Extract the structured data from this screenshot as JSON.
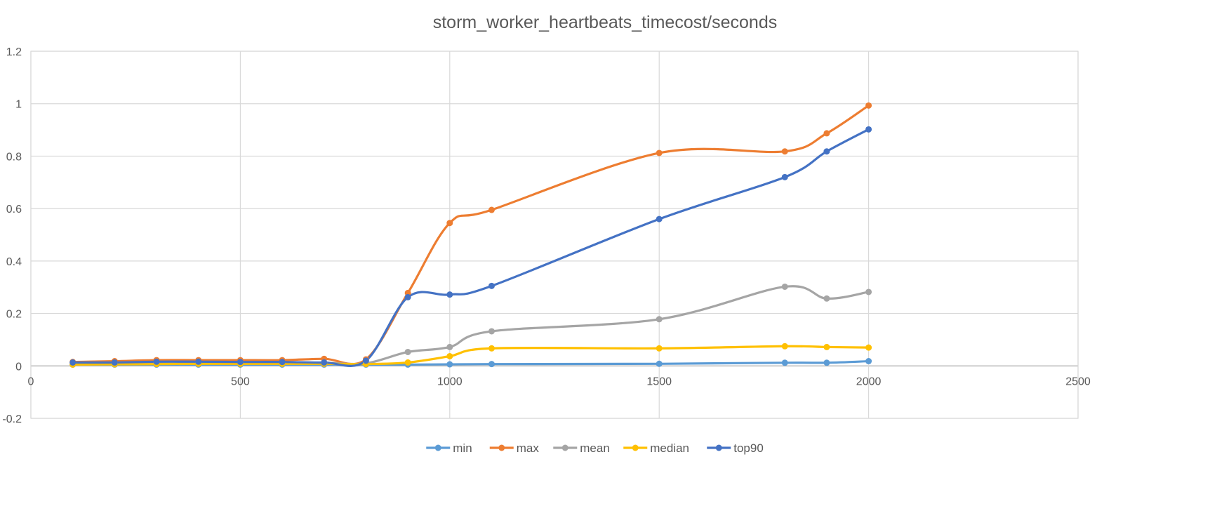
{
  "chart_data": {
    "type": "line",
    "title": "storm_worker_heartbeats_timecost/seconds",
    "xlabel": "",
    "ylabel": "",
    "xlim": [
      0,
      2500
    ],
    "ylim": [
      -0.2,
      1.2
    ],
    "x_ticks": [
      0,
      500,
      1000,
      1500,
      2000,
      2500
    ],
    "x_tick_labels": [
      "0",
      "500",
      "1000",
      "1500",
      "2000",
      "2500"
    ],
    "y_ticks": [
      -0.2,
      0,
      0.2,
      0.4,
      0.6,
      0.8,
      1,
      1.2
    ],
    "y_tick_labels": [
      "-0.2",
      "0",
      "0.2",
      "0.4",
      "0.6",
      "0.8",
      "1",
      "1.2"
    ],
    "grid": true,
    "legend_position": "bottom",
    "smooth": true,
    "x": [
      100,
      200,
      300,
      400,
      500,
      600,
      700,
      800,
      900,
      1000,
      1100,
      1500,
      1800,
      1900,
      2000
    ],
    "series": [
      {
        "name": "min",
        "color": "#5B9BD5",
        "values": [
          0.005,
          0.005,
          0.005,
          0.005,
          0.005,
          0.005,
          0.005,
          0.005,
          0.005,
          0.006,
          0.007,
          0.008,
          0.012,
          0.012,
          0.018
        ]
      },
      {
        "name": "max",
        "color": "#ED7D31",
        "values": [
          0.015,
          0.018,
          0.022,
          0.022,
          0.022,
          0.022,
          0.027,
          0.025,
          0.278,
          0.545,
          0.595,
          0.812,
          0.818,
          0.887,
          0.993
        ]
      },
      {
        "name": "mean",
        "color": "#A5A5A5",
        "values": [
          0.008,
          0.01,
          0.012,
          0.012,
          0.012,
          0.012,
          0.012,
          0.01,
          0.053,
          0.072,
          0.132,
          0.178,
          0.302,
          0.257,
          0.282
        ]
      },
      {
        "name": "median",
        "color": "#FFC000",
        "values": [
          0.005,
          0.006,
          0.007,
          0.008,
          0.008,
          0.008,
          0.008,
          0.007,
          0.013,
          0.037,
          0.067,
          0.067,
          0.075,
          0.072,
          0.07
        ]
      },
      {
        "name": "top90",
        "color": "#4472C4",
        "values": [
          0.013,
          0.013,
          0.016,
          0.016,
          0.015,
          0.015,
          0.013,
          0.02,
          0.262,
          0.272,
          0.305,
          0.56,
          0.72,
          0.818,
          0.902
        ]
      }
    ]
  }
}
